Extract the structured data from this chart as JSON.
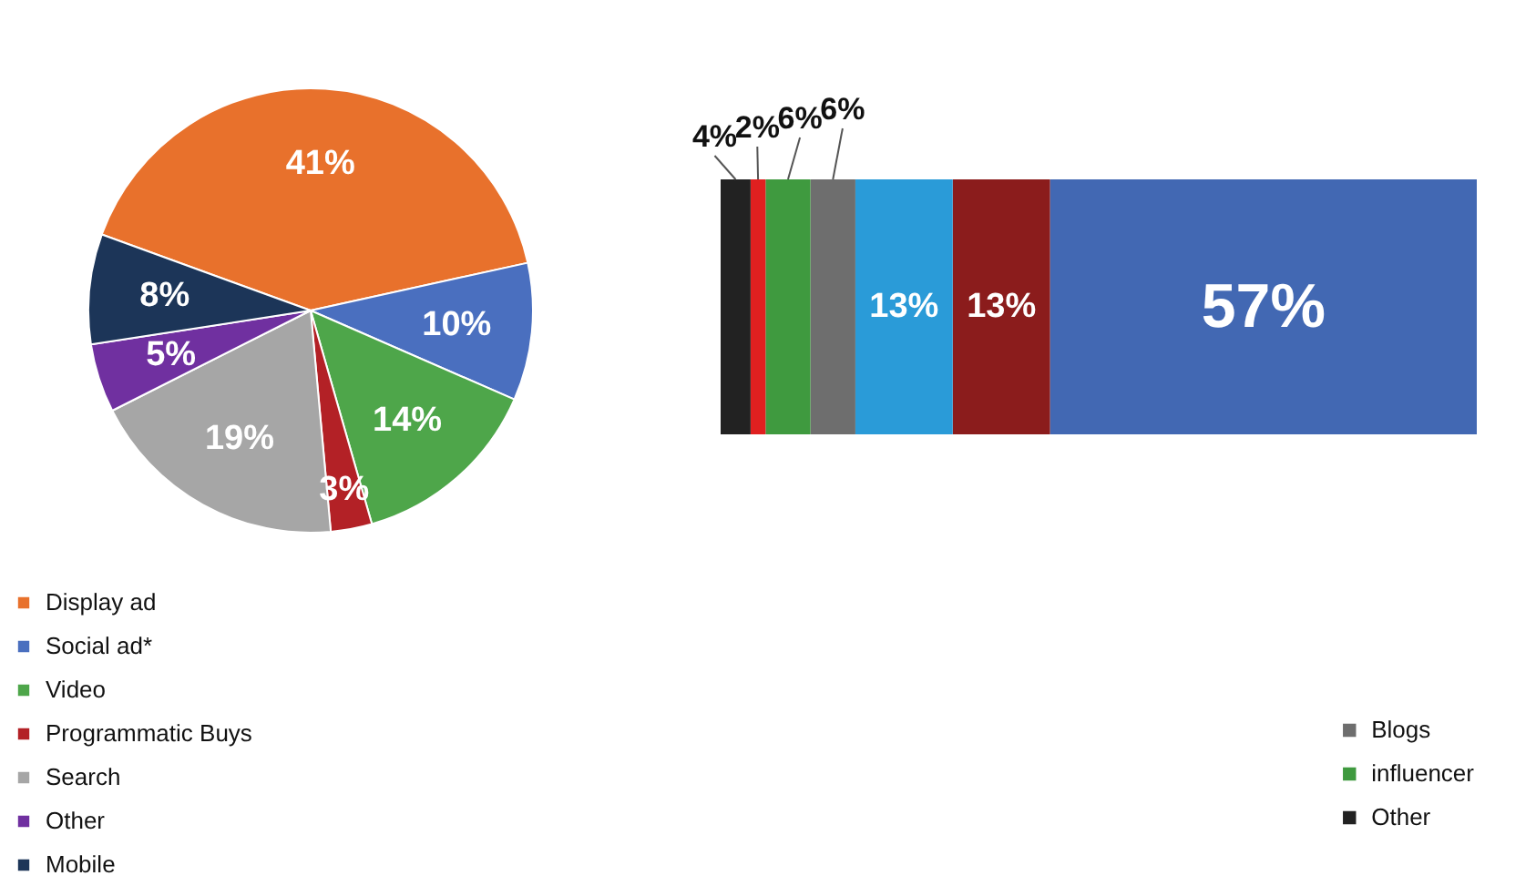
{
  "chart_data": [
    {
      "type": "pie",
      "categories": [
        "Display ad",
        "Social ad*",
        "Video",
        "Programmatic Buys",
        "Search",
        "Other",
        "Mobile"
      ],
      "values": [
        41,
        10,
        14,
        3,
        19,
        5,
        8
      ],
      "colors": [
        "#e8712c",
        "#4a6fbf",
        "#4ea64a",
        "#b32126",
        "#a6a6a6",
        "#7030a0",
        "#1c3558"
      ],
      "value_labels": [
        "41%",
        "10%",
        "14%",
        "3%",
        "19%",
        "5%",
        "8%"
      ],
      "legend": "bottom left"
    },
    {
      "type": "bar",
      "orientation": "horizontal",
      "stacked": true,
      "categories": [
        null
      ],
      "series": [
        {
          "color": "#4268b3",
          "values": [
            57
          ],
          "value_labels": [
            "57%"
          ]
        },
        {
          "color": "#8b1c1c",
          "values": [
            13
          ],
          "value_labels": [
            "13%"
          ]
        },
        {
          "color": "#2a9bd8",
          "values": [
            13
          ],
          "value_labels": [
            "13%"
          ]
        },
        {
          "name": "Blogs",
          "color": "#6e6e6e",
          "values": [
            6
          ],
          "value_labels": [
            "6%"
          ]
        },
        {
          "name": "influencer",
          "color": "#3f9a3f",
          "values": [
            6
          ],
          "value_labels": [
            "6%"
          ]
        },
        {
          "color": "#e02020",
          "values": [
            2
          ],
          "value_labels": [
            "2%"
          ]
        },
        {
          "name": "Other",
          "color": "#222222",
          "values": [
            4
          ],
          "value_labels": [
            "4%"
          ]
        }
      ],
      "legend": "bottom right"
    }
  ]
}
